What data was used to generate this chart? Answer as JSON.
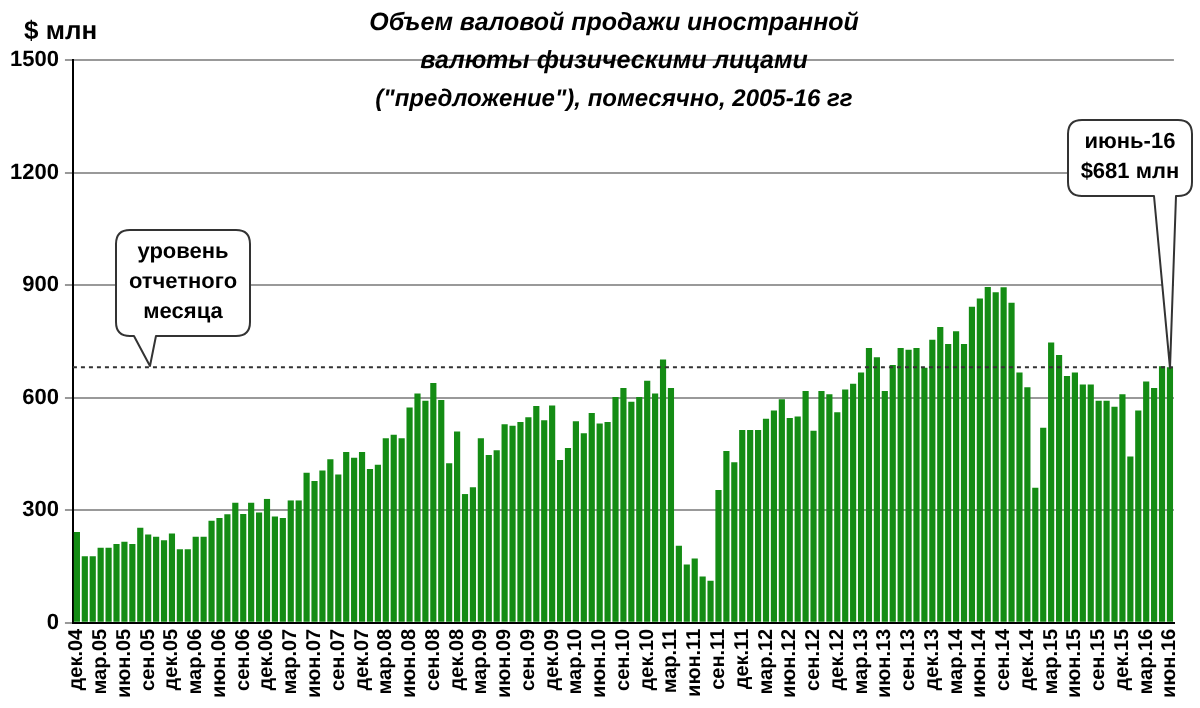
{
  "chart_data": {
    "type": "bar",
    "title": "Объем валовой продажи иностранной валюты физическими лицами",
    "subtitle": "(\"предложение\"), помесячно, 2005-16 гг",
    "ylabel": "$ млн",
    "categories": [
      "дек.04",
      null,
      null,
      "мар.05",
      null,
      null,
      "июн.05",
      null,
      null,
      "сен.05",
      null,
      null,
      "дек.05",
      null,
      null,
      "мар.06",
      null,
      null,
      "июн.06",
      null,
      null,
      "сен.06",
      null,
      null,
      "дек.06",
      null,
      null,
      "мар.07",
      null,
      null,
      "июн.07",
      null,
      null,
      "сен.07",
      null,
      null,
      "дек.07",
      null,
      null,
      "мар.08",
      null,
      null,
      "июн.08",
      null,
      null,
      "сен.08",
      null,
      null,
      "дек.08",
      null,
      null,
      "мар.09",
      null,
      null,
      "июн.09",
      null,
      null,
      "сен.09",
      null,
      null,
      "дек.09",
      null,
      null,
      "мар.10",
      null,
      null,
      "июн.10",
      null,
      null,
      "сен.10",
      null,
      null,
      "дек.10",
      null,
      null,
      "мар.11",
      null,
      null,
      "июн.11",
      null,
      null,
      "сен.11",
      null,
      null,
      "дек.11",
      null,
      null,
      "мар.12",
      null,
      null,
      "июн.12",
      null,
      null,
      "сен.12",
      null,
      null,
      "дек.12",
      null,
      null,
      "мар.13",
      null,
      null,
      "июн.13",
      null,
      null,
      "сен.13",
      null,
      null,
      "дек.13",
      null,
      null,
      "мар.14",
      null,
      null,
      "июн.14",
      null,
      null,
      "сен.14",
      null,
      null,
      "дек.14",
      null,
      null,
      "мар.15",
      null,
      null,
      "июн.15",
      null,
      null,
      "сен.15",
      null,
      null,
      "дек.15",
      null,
      null,
      "мар.16",
      null,
      null,
      "июн.16"
    ],
    "values": [
      242,
      177,
      177,
      200,
      200,
      210,
      216,
      210,
      253,
      235,
      229,
      220,
      238,
      196,
      196,
      229,
      229,
      272,
      279,
      289,
      320,
      290,
      320,
      294,
      330,
      283,
      279,
      326,
      326,
      400,
      378,
      406,
      436,
      395,
      455,
      440,
      455,
      410,
      421,
      492,
      501,
      492,
      574,
      611,
      592,
      639,
      594,
      425,
      510,
      343,
      361,
      492,
      447,
      460,
      529,
      525,
      535,
      548,
      578,
      540,
      579,
      434,
      466,
      537,
      505,
      559,
      531,
      535,
      602,
      626,
      589,
      602,
      645,
      611,
      702,
      626,
      205,
      155,
      171,
      123,
      112,
      354,
      458,
      428,
      514,
      514,
      514,
      544,
      566,
      596,
      546,
      550,
      618,
      512,
      618,
      609,
      561,
      622,
      637,
      667,
      732,
      708,
      618,
      687,
      732,
      728,
      732,
      680,
      754,
      788,
      743,
      777,
      743,
      842,
      864,
      895,
      881,
      894,
      853,
      667,
      628,
      360,
      520,
      747,
      714,
      658,
      667,
      635,
      635,
      592,
      592,
      576,
      609,
      443,
      566,
      643,
      626,
      684,
      681
    ],
    "color": "#148c14",
    "ylim": [
      0,
      1500
    ],
    "yticks": [
      0,
      300,
      600,
      900,
      1200,
      1500
    ],
    "grid": "y",
    "legend": false,
    "ref_lines": [
      {
        "axis": "y",
        "value": 681,
        "label": "уровень отчетного месяца",
        "line_style": "dotted",
        "color": "#333333"
      }
    ],
    "annotations": [
      "июнь-16 $681 млн"
    ]
  }
}
